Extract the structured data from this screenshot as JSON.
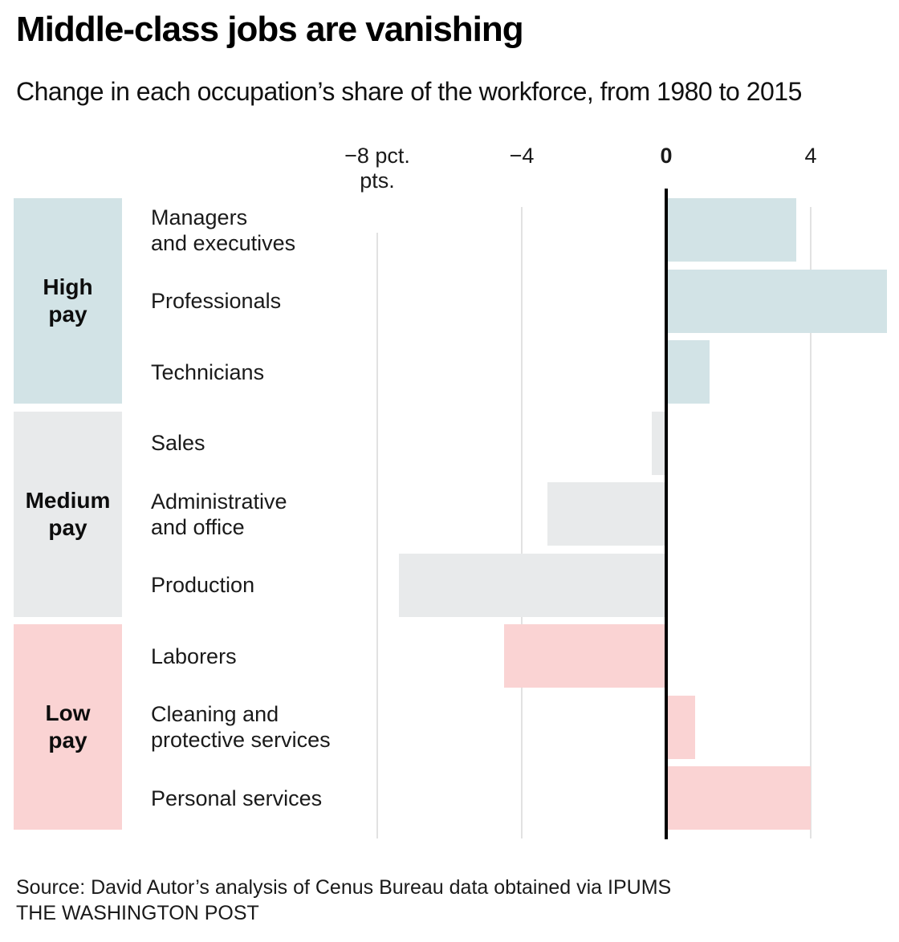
{
  "header": {
    "title": "Middle-class jobs are vanishing",
    "subtitle": "Change in each occupation’s share of the workforce, from 1980 to 2015"
  },
  "chart_data": {
    "type": "bar",
    "orientation": "horizontal",
    "x_unit": "percentage points",
    "title": "Middle-class jobs are vanishing",
    "subtitle": "Change in each occupation’s share of the workforce, from 1980 to 2015",
    "categories": [
      "Managers\nand executives",
      "Professionals",
      "Technicians",
      "Sales",
      "Administrative\nand office",
      "Production",
      "Laborers",
      "Cleaning and\nprotective services",
      "Personal services"
    ],
    "values": [
      3.6,
      6.1,
      1.2,
      -0.4,
      -3.3,
      -7.4,
      -4.5,
      0.8,
      4.0
    ],
    "groups": [
      {
        "label": "High\npay",
        "color": "#d2e3e6",
        "category_indexes": [
          0,
          1,
          2
        ]
      },
      {
        "label": "Medium\npay",
        "color": "#e8eaeb",
        "category_indexes": [
          3,
          4,
          5
        ]
      },
      {
        "label": "Low\npay",
        "color": "#fad3d3",
        "category_indexes": [
          6,
          7,
          8
        ]
      }
    ],
    "xticks": [
      {
        "value": -8,
        "label": "−8 pct.",
        "sublabel": "pts."
      },
      {
        "value": -4,
        "label": "−4"
      },
      {
        "value": 0,
        "label": "0",
        "bold": true
      },
      {
        "value": 4,
        "label": "4"
      }
    ],
    "xlim": [
      -9.1,
      6.1
    ],
    "grid": true,
    "legend": false
  },
  "footer": {
    "source": "Source: David Autor’s analysis of Cenus Bureau data obtained via IPUMS",
    "credit": "THE WASHINGTON POST"
  },
  "colors": {
    "high_pay": "#d2e3e6",
    "medium_pay": "#e8eaeb",
    "low_pay": "#fad3d3",
    "axis": "#000000",
    "gridline": "#e2e2e2",
    "text": "#1a1a1a"
  }
}
